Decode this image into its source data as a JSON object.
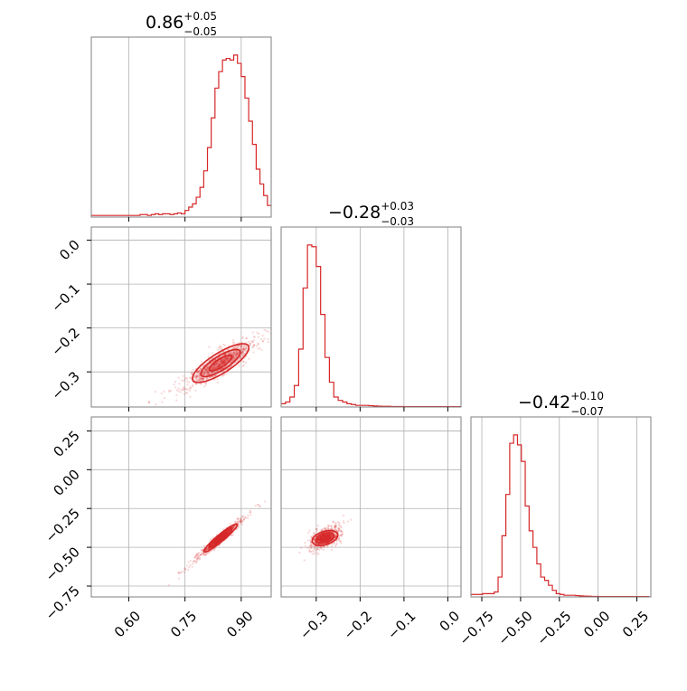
{
  "chart_data": {
    "type": "corner",
    "color": "#d62728",
    "grid": true,
    "parameters": [
      {
        "index": 0,
        "median": "0.86",
        "plus": "+0.05",
        "minus": "−0.05",
        "range": [
          0.5,
          0.98
        ],
        "ticks": [
          0.6,
          0.75,
          0.9
        ],
        "tick_labels": [
          "0.60",
          "0.75",
          "0.90"
        ]
      },
      {
        "index": 1,
        "median": "−0.28",
        "plus": "+0.03",
        "minus": "−0.03",
        "range": [
          -0.38,
          0.03
        ],
        "ticks": [
          -0.3,
          -0.2,
          -0.1,
          0.0
        ],
        "tick_labels": [
          "−0.3",
          "−0.2",
          "−0.1",
          "0.0"
        ]
      },
      {
        "index": 2,
        "median": "−0.42",
        "plus": "+0.10",
        "minus": "−0.07",
        "range": [
          -0.82,
          0.34
        ],
        "ticks": [
          -0.75,
          -0.5,
          -0.25,
          0.0,
          0.25
        ],
        "tick_labels": [
          "−0.75",
          "−0.50",
          "−0.25",
          "0.00",
          "0.25"
        ]
      }
    ],
    "histograms": [
      {
        "param": 0,
        "x_start": 0.5,
        "bin_width": 0.01,
        "counts": [
          0.01,
          0.01,
          0.01,
          0.01,
          0.01,
          0.01,
          0.01,
          0.01,
          0.01,
          0.01,
          0.01,
          0.01,
          0.01,
          0.015,
          0.015,
          0.01,
          0.015,
          0.02,
          0.015,
          0.02,
          0.02,
          0.015,
          0.02,
          0.025,
          0.02,
          0.04,
          0.06,
          0.08,
          0.12,
          0.18,
          0.28,
          0.42,
          0.6,
          0.78,
          0.88,
          0.95,
          0.96,
          0.95,
          0.98,
          0.93,
          0.85,
          0.72,
          0.58,
          0.44,
          0.29,
          0.2,
          0.13,
          0.07
        ]
      },
      {
        "param": 1,
        "x_start": -0.38,
        "bin_width": 0.01,
        "counts": [
          0.02,
          0.03,
          0.06,
          0.13,
          0.35,
          0.72,
          0.98,
          0.97,
          0.85,
          0.56,
          0.3,
          0.15,
          0.06,
          0.04,
          0.03,
          0.02,
          0.015,
          0.01,
          0.01,
          0.01,
          0.008,
          0.006,
          0.005,
          0.004,
          0.004,
          0.003,
          0.003,
          0.003,
          0.002,
          0.002,
          0.002,
          0.002,
          0.002,
          0.002,
          0.002,
          0.002,
          0.002,
          0.002,
          0.002,
          0.002,
          0.002
        ]
      },
      {
        "param": 2,
        "x_start": -0.82,
        "bin_width": 0.025,
        "counts": [
          0.015,
          0.015,
          0.015,
          0.02,
          0.02,
          0.02,
          0.03,
          0.12,
          0.37,
          0.62,
          0.93,
          0.98,
          0.92,
          0.82,
          0.55,
          0.4,
          0.3,
          0.2,
          0.12,
          0.1,
          0.07,
          0.04,
          0.02,
          0.015,
          0.01,
          0.01,
          0.01,
          0.008,
          0.006,
          0.005,
          0.004,
          0.003,
          0.003,
          0.002,
          0.002,
          0.002,
          0.002,
          0.002,
          0.002,
          0.002,
          0.002,
          0.002,
          0.002,
          0.002,
          0.002,
          0.002
        ]
      }
    ],
    "joint": [
      {
        "x": 0,
        "y": 1,
        "center": [
          0.845,
          -0.28
        ],
        "slope": 0.52,
        "sigma_major": 0.042,
        "sigma_minor": 0.012
      },
      {
        "x": 0,
        "y": 2,
        "center": [
          0.845,
          -0.44
        ],
        "slope": 2.1,
        "sigma_major": 0.05,
        "sigma_minor": 0.0065
      },
      {
        "x": 1,
        "y": 2,
        "center": [
          -0.28,
          -0.44
        ],
        "slope": 3.1,
        "sigma_major": 0.025,
        "sigma_minor": 0.013
      }
    ]
  }
}
